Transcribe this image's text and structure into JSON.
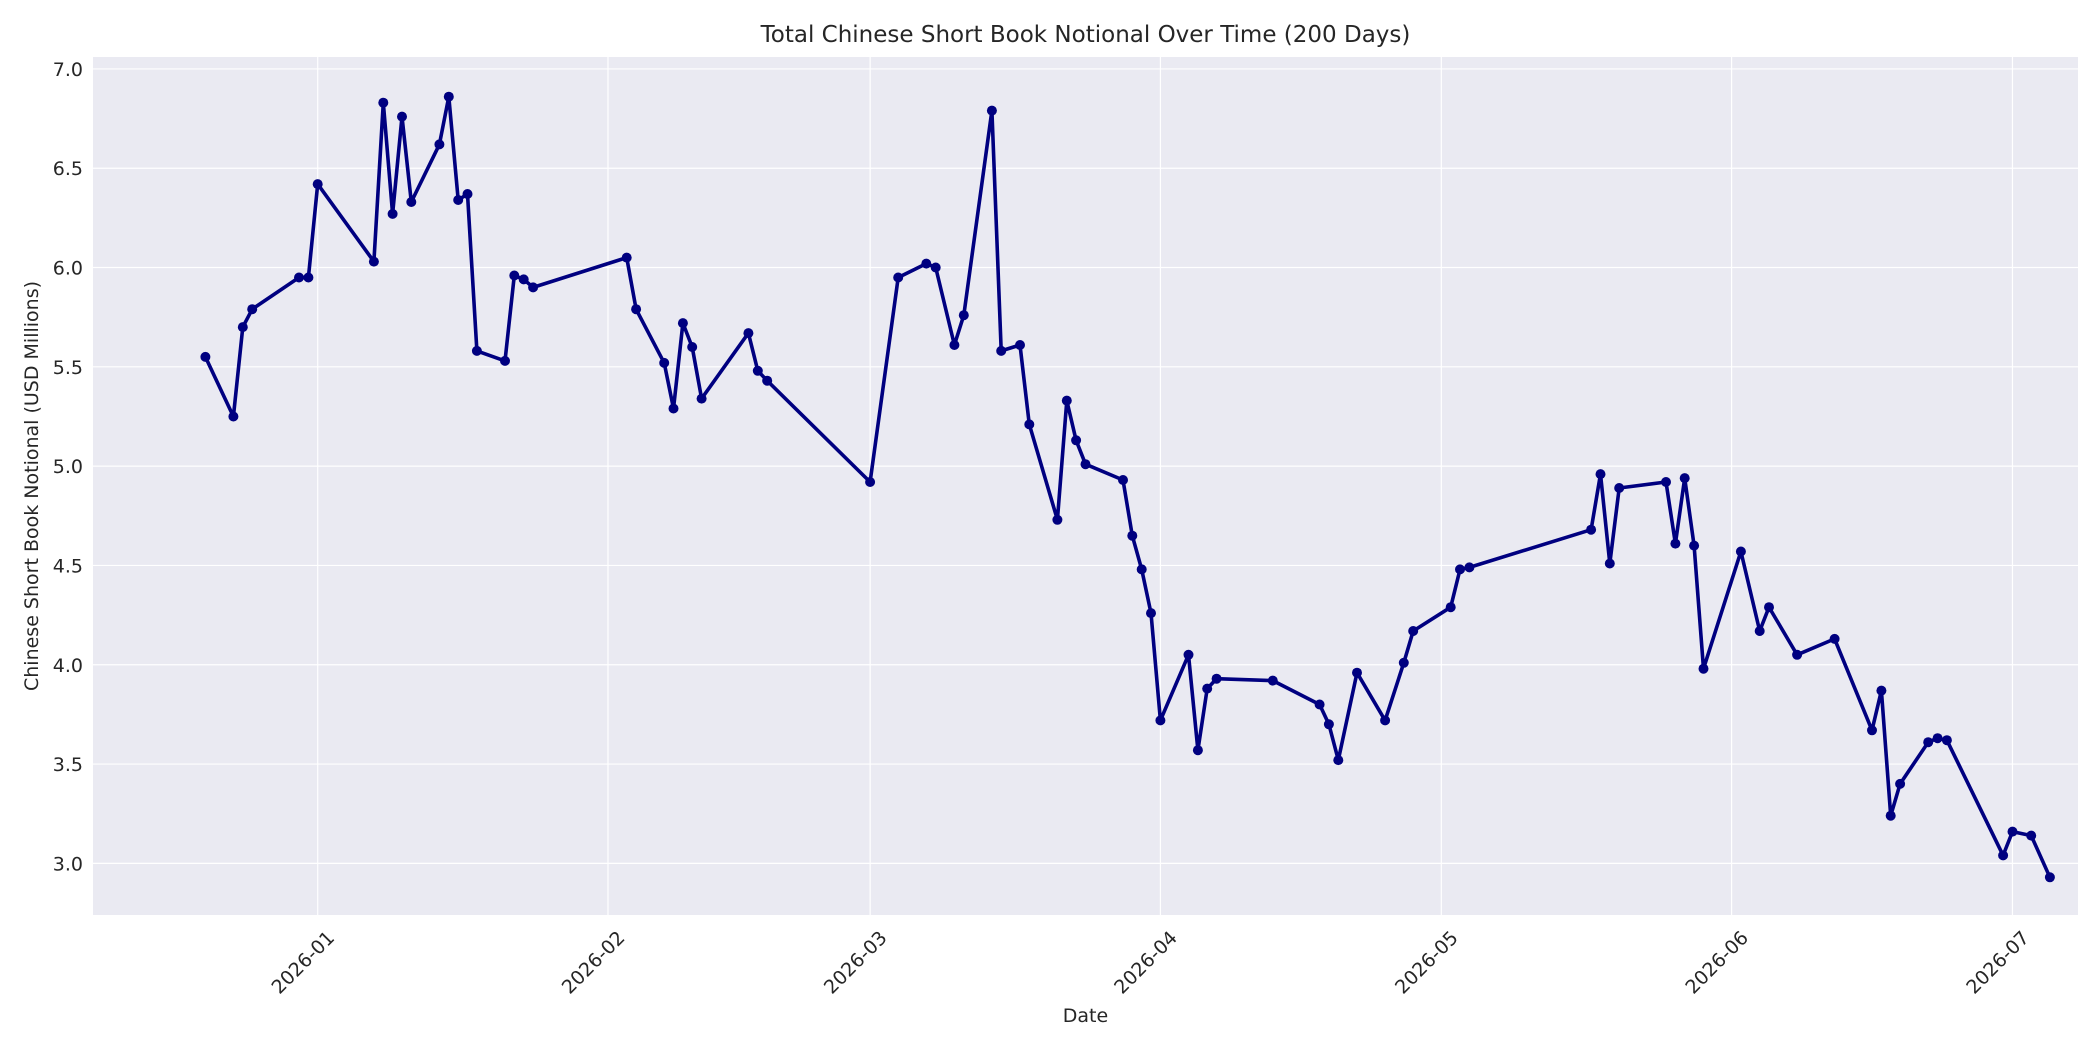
{
  "chart_data": {
    "type": "line",
    "title": "Total Chinese Short Book Notional Over Time (200 Days)",
    "xlabel": "Date",
    "ylabel": "Chinese Short Book Notional (USD Millions)",
    "xlim": [
      "2025-12-08",
      "2026-07-08"
    ],
    "ylim": [
      2.74,
      7.06
    ],
    "x_ticks": [
      "2026-01",
      "2026-02",
      "2026-03",
      "2026-04",
      "2026-05",
      "2026-06",
      "2026-07"
    ],
    "y_ticks": [
      "3.0",
      "3.5",
      "4.0",
      "4.5",
      "5.0",
      "5.5",
      "6.0",
      "6.5",
      "7.0"
    ],
    "grid": true,
    "colors": {
      "line": "#000080",
      "plot_background": "#eaeaf2",
      "grid": "#ffffff"
    },
    "series": [
      {
        "points": [
          [
            "2025-12-20",
            5.55
          ],
          [
            "2025-12-23",
            5.25
          ],
          [
            "2025-12-24",
            5.7
          ],
          [
            "2025-12-25",
            5.79
          ],
          [
            "2025-12-30",
            5.95
          ],
          [
            "2025-12-31",
            5.95
          ],
          [
            "2026-01-01",
            6.42
          ],
          [
            "2026-01-07",
            6.03
          ],
          [
            "2026-01-08",
            6.83
          ],
          [
            "2026-01-09",
            6.27
          ],
          [
            "2026-01-10",
            6.76
          ],
          [
            "2026-01-11",
            6.33
          ],
          [
            "2026-01-14",
            6.62
          ],
          [
            "2026-01-15",
            6.86
          ],
          [
            "2026-01-16",
            6.34
          ],
          [
            "2026-01-17",
            6.37
          ],
          [
            "2026-01-18",
            5.58
          ],
          [
            "2026-01-21",
            5.53
          ],
          [
            "2026-01-22",
            5.96
          ],
          [
            "2026-01-23",
            5.94
          ],
          [
            "2026-01-24",
            5.9
          ],
          [
            "2026-02-03",
            6.05
          ],
          [
            "2026-02-04",
            5.79
          ],
          [
            "2026-02-07",
            5.52
          ],
          [
            "2026-02-08",
            5.29
          ],
          [
            "2026-02-09",
            5.72
          ],
          [
            "2026-02-10",
            5.6
          ],
          [
            "2026-02-11",
            5.34
          ],
          [
            "2026-02-16",
            5.67
          ],
          [
            "2026-02-17",
            5.48
          ],
          [
            "2026-02-18",
            5.43
          ],
          [
            "2026-03-01",
            4.92
          ],
          [
            "2026-03-04",
            5.95
          ],
          [
            "2026-03-07",
            6.02
          ],
          [
            "2026-03-08",
            6.0
          ],
          [
            "2026-03-10",
            5.61
          ],
          [
            "2026-03-11",
            5.76
          ],
          [
            "2026-03-14",
            6.79
          ],
          [
            "2026-03-15",
            5.58
          ],
          [
            "2026-03-17",
            5.61
          ],
          [
            "2026-03-18",
            5.21
          ],
          [
            "2026-03-21",
            4.73
          ],
          [
            "2026-03-22",
            5.33
          ],
          [
            "2026-03-23",
            5.13
          ],
          [
            "2026-03-24",
            5.01
          ],
          [
            "2026-03-28",
            4.93
          ],
          [
            "2026-03-29",
            4.65
          ],
          [
            "2026-03-30",
            4.48
          ],
          [
            "2026-03-31",
            4.26
          ],
          [
            "2026-04-01",
            3.72
          ],
          [
            "2026-04-04",
            4.05
          ],
          [
            "2026-04-05",
            3.57
          ],
          [
            "2026-04-06",
            3.88
          ],
          [
            "2026-04-07",
            3.93
          ],
          [
            "2026-04-13",
            3.92
          ],
          [
            "2026-04-18",
            3.8
          ],
          [
            "2026-04-19",
            3.7
          ],
          [
            "2026-04-20",
            3.52
          ],
          [
            "2026-04-22",
            3.96
          ],
          [
            "2026-04-25",
            3.72
          ],
          [
            "2026-04-27",
            4.01
          ],
          [
            "2026-04-28",
            4.17
          ],
          [
            "2026-05-02",
            4.29
          ],
          [
            "2026-05-03",
            4.48
          ],
          [
            "2026-05-04",
            4.49
          ],
          [
            "2026-05-17",
            4.68
          ],
          [
            "2026-05-18",
            4.96
          ],
          [
            "2026-05-19",
            4.51
          ],
          [
            "2026-05-20",
            4.89
          ],
          [
            "2026-05-25",
            4.92
          ],
          [
            "2026-05-26",
            4.61
          ],
          [
            "2026-05-27",
            4.94
          ],
          [
            "2026-05-28",
            4.6
          ],
          [
            "2026-05-29",
            3.98
          ],
          [
            "2026-06-02",
            4.57
          ],
          [
            "2026-06-04",
            4.17
          ],
          [
            "2026-06-05",
            4.29
          ],
          [
            "2026-06-08",
            4.05
          ],
          [
            "2026-06-12",
            4.13
          ],
          [
            "2026-06-16",
            3.67
          ],
          [
            "2026-06-17",
            3.87
          ],
          [
            "2026-06-18",
            3.24
          ],
          [
            "2026-06-19",
            3.4
          ],
          [
            "2026-06-22",
            3.61
          ],
          [
            "2026-06-23",
            3.63
          ],
          [
            "2026-06-24",
            3.62
          ],
          [
            "2026-06-30",
            3.04
          ],
          [
            "2026-07-01",
            3.16
          ],
          [
            "2026-07-03",
            3.14
          ],
          [
            "2026-07-05",
            2.93
          ]
        ]
      }
    ]
  }
}
